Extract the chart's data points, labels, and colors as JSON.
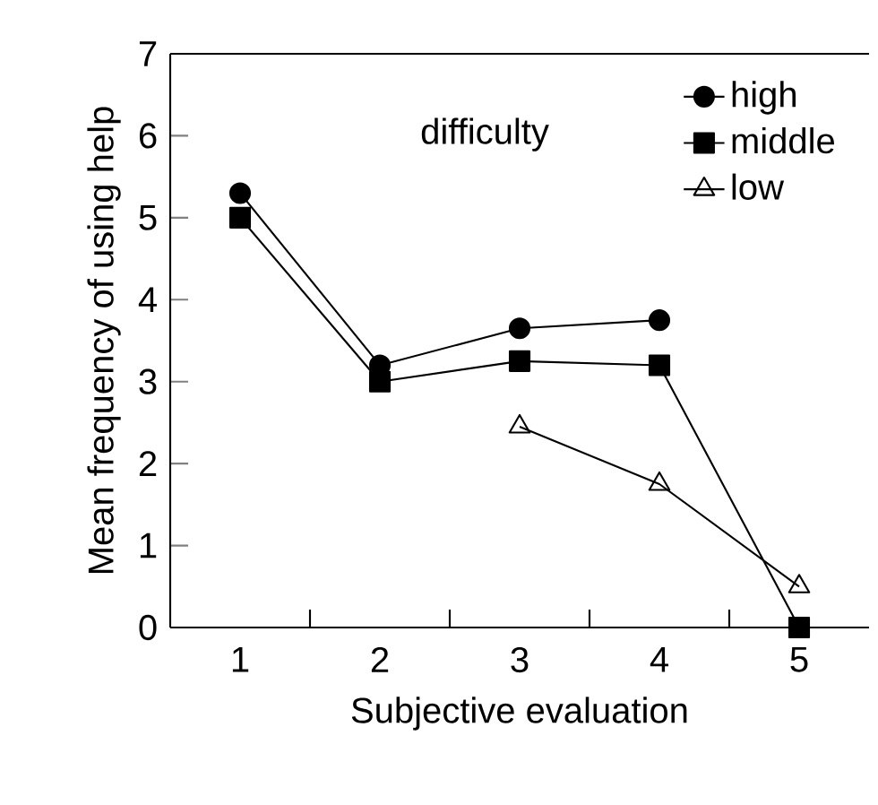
{
  "chart_data": {
    "type": "line",
    "xlabel": "Subjective evaluation",
    "ylabel": "Mean frequency of using help",
    "legend_title": "difficulty",
    "categories": [
      "1",
      "2",
      "3",
      "4",
      "5"
    ],
    "ylim": [
      0,
      7
    ],
    "yticks": [
      0,
      1,
      2,
      3,
      4,
      5,
      6,
      7
    ],
    "legend": "top right",
    "grid": false,
    "series": [
      {
        "name": "high",
        "color": "#000000",
        "marker": "circle",
        "values": [
          5.3,
          3.2,
          3.65,
          3.75,
          null
        ]
      },
      {
        "name": "middle",
        "color": "#000000",
        "marker": "square",
        "values": [
          5.0,
          3.0,
          3.25,
          3.2,
          0
        ]
      },
      {
        "name": "low",
        "color": "#000000",
        "marker": "triangle",
        "values": [
          null,
          null,
          2.45,
          1.75,
          0.5
        ]
      }
    ]
  }
}
